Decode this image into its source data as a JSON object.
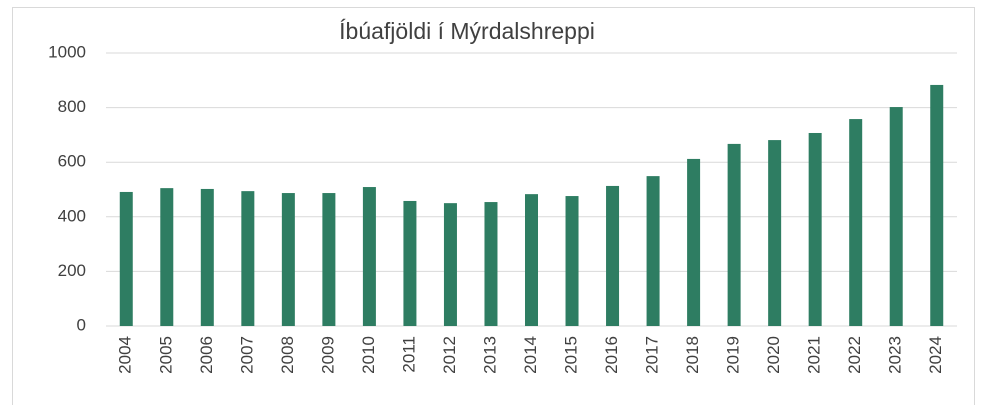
{
  "chart_data": {
    "type": "bar",
    "title": "Íbúafjöldi í Mýrdalshreppi",
    "categories": [
      "2004",
      "2005",
      "2006",
      "2007",
      "2008",
      "2009",
      "2010",
      "2011",
      "2012",
      "2013",
      "2014",
      "2015",
      "2016",
      "2017",
      "2018",
      "2019",
      "2020",
      "2021",
      "2022",
      "2023",
      "2024"
    ],
    "values": [
      491,
      505,
      502,
      494,
      487,
      487,
      509,
      458,
      450,
      454,
      483,
      476,
      513,
      549,
      612,
      667,
      681,
      707,
      758,
      802,
      883
    ],
    "color": "#2e7d62",
    "ylim": [
      0,
      1000
    ],
    "yticks": [
      0,
      200,
      400,
      600,
      800,
      1000
    ],
    "grid": true
  }
}
